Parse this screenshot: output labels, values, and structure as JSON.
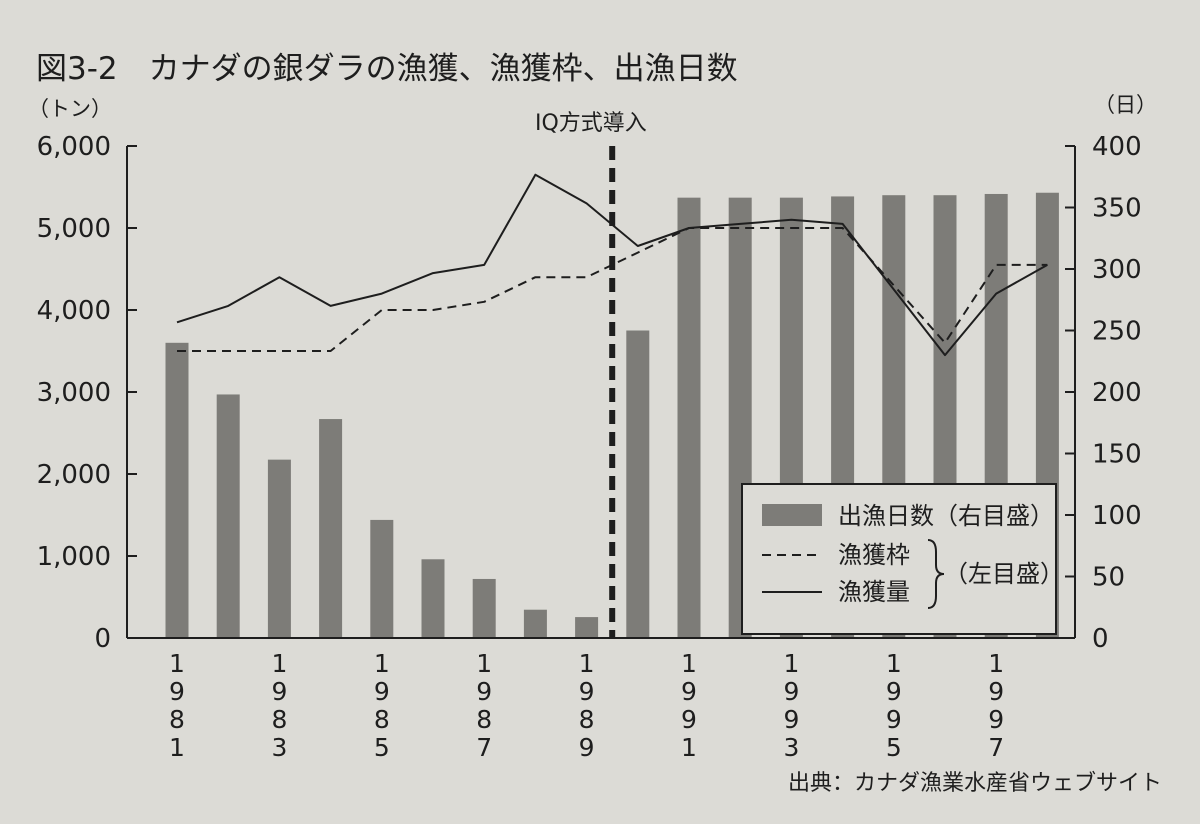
{
  "chart_data": {
    "type": "bar",
    "title": "図3-2　カナダの銀ダラの漁獲、漁獲枠、出漁日数",
    "left_unit": "（トン）",
    "right_unit": "（日）",
    "left_ylim": [
      0,
      6000
    ],
    "right_ylim": [
      0,
      400
    ],
    "left_ticks": [
      "0",
      "1,000",
      "2,000",
      "3,000",
      "4,000",
      "5,000",
      "6,000"
    ],
    "right_ticks": [
      "0",
      "50",
      "100",
      "150",
      "200",
      "250",
      "300",
      "350",
      "400"
    ],
    "x": [
      1981,
      1982,
      1983,
      1984,
      1985,
      1986,
      1987,
      1988,
      1989,
      1990,
      1991,
      1992,
      1993,
      1994,
      1995,
      1996,
      1997,
      1998
    ],
    "x_tick_labels": [
      "1981",
      "1983",
      "1985",
      "1987",
      "1989",
      "1991",
      "1993",
      "1995",
      "1997"
    ],
    "series": [
      {
        "name": "出漁日数（右目盛）",
        "kind": "bar",
        "axis": "right",
        "values": [
          240,
          198,
          145,
          178,
          96,
          64,
          48,
          23,
          17,
          250,
          358,
          358,
          358,
          359,
          360,
          360,
          361,
          362
        ]
      },
      {
        "name": "漁獲枠",
        "kind": "dashed-line",
        "axis": "left",
        "values": [
          3500,
          3500,
          3500,
          3500,
          4000,
          4000,
          4100,
          4400,
          4400,
          4700,
          5000,
          5000,
          5000,
          5000,
          4300,
          3600,
          4550,
          4550
        ]
      },
      {
        "name": "漁獲量",
        "kind": "line",
        "axis": "left",
        "values": [
          3850,
          4050,
          4400,
          4050,
          4200,
          4450,
          4550,
          5650,
          5300,
          4780,
          5000,
          5050,
          5100,
          5050,
          4250,
          3450,
          4200,
          4550
        ]
      }
    ],
    "annotation": {
      "label": "IQ方式導入",
      "x": 1989.5
    },
    "legend": {
      "position": "bottom-right",
      "bar_label": "出漁日数（右目盛）",
      "quota_label": "漁獲枠",
      "catch_label": "漁獲量",
      "group_label": "（左目盛）"
    },
    "source": "出典：カナダ漁業水産省ウェブサイト"
  },
  "colors": {
    "background": "#dcdbd6",
    "bar": "#7d7c78",
    "ink": "#1e1e1e"
  }
}
